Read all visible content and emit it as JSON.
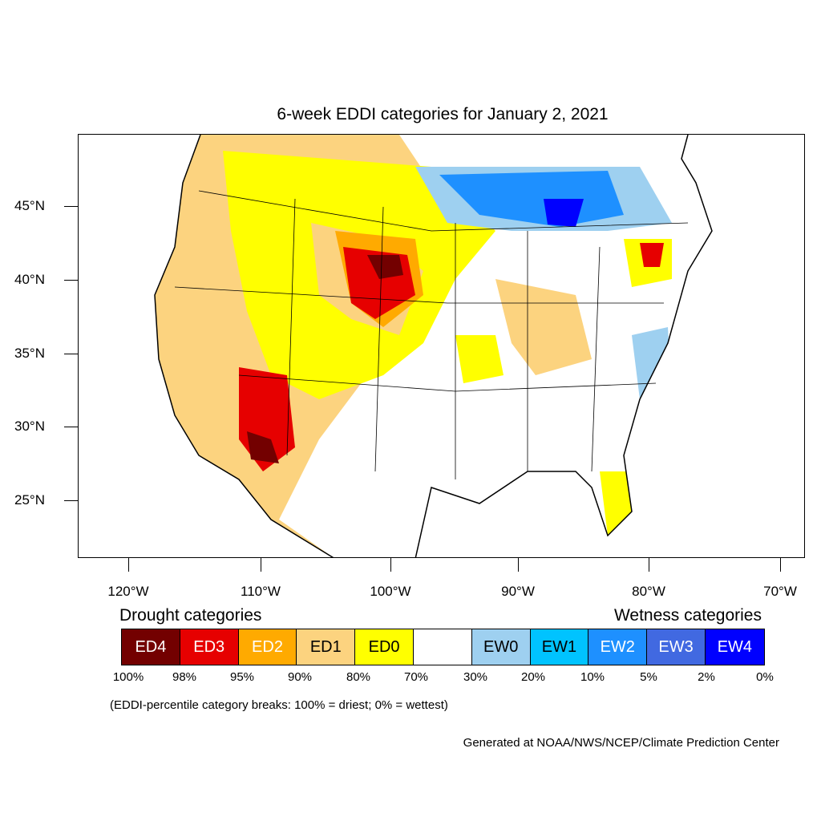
{
  "title": "6-week EDDI categories for January 2, 2021",
  "lat_labels": [
    "45°N",
    "40°N",
    "35°N",
    "30°N",
    "25°N"
  ],
  "lon_labels": [
    "120°W",
    "110°W",
    "100°W",
    "90°W",
    "80°W",
    "70°W"
  ],
  "legend": {
    "drought_heading": "Drought categories",
    "wetness_heading": "Wetness categories",
    "categories": [
      {
        "label": "ED4",
        "color": "#730000",
        "text_color": "#ffffff"
      },
      {
        "label": "ED3",
        "color": "#e60000",
        "text_color": "#ffffff"
      },
      {
        "label": "ED2",
        "color": "#ffaa00",
        "text_color": "#ffffff"
      },
      {
        "label": "ED1",
        "color": "#fcd37f",
        "text_color": "#000000"
      },
      {
        "label": "ED0",
        "color": "#ffff00",
        "text_color": "#000000"
      },
      {
        "label": "",
        "color": "#ffffff",
        "text_color": "#000000"
      },
      {
        "label": "EW0",
        "color": "#9ed0f0",
        "text_color": "#000000"
      },
      {
        "label": "EW1",
        "color": "#00c3ff",
        "text_color": "#000000"
      },
      {
        "label": "EW2",
        "color": "#1e90ff",
        "text_color": "#ffffff"
      },
      {
        "label": "EW3",
        "color": "#4169e1",
        "text_color": "#ffffff"
      },
      {
        "label": "EW4",
        "color": "#0000ff",
        "text_color": "#ffffff"
      }
    ],
    "breaks": [
      "100%",
      "98%",
      "95%",
      "90%",
      "80%",
      "70%",
      "30%",
      "20%",
      "10%",
      "5%",
      "2%",
      "0%"
    ]
  },
  "note": "(EDDI-percentile category breaks: 100% = driest; 0% = wettest)",
  "credit": "Generated at NOAA/NWS/NCEP/Climate Prediction Center"
}
